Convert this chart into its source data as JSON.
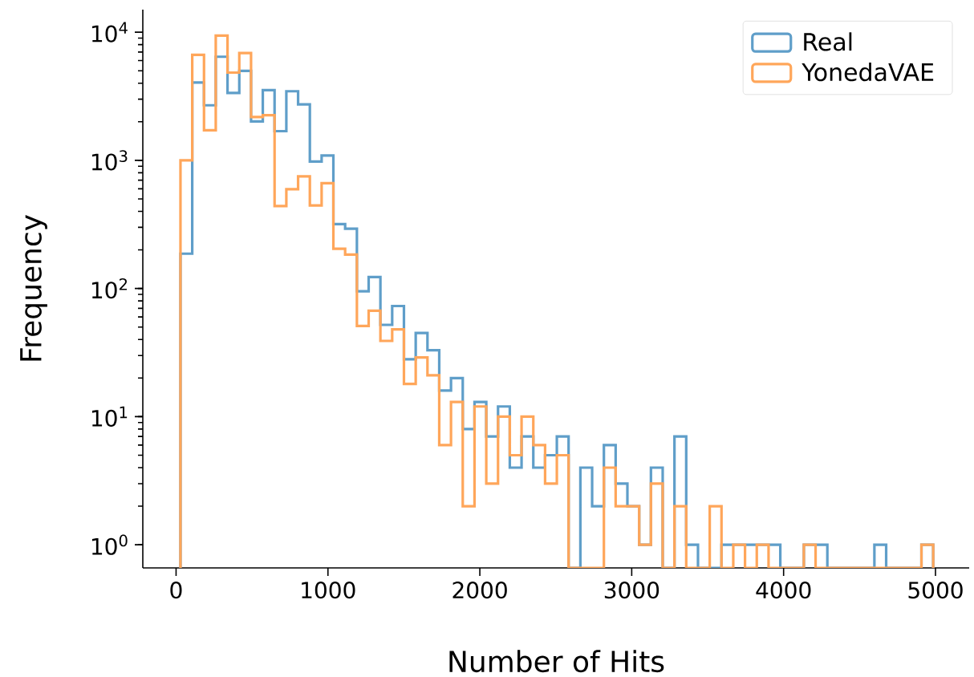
{
  "chart_data": {
    "type": "histogram",
    "xlabel": "Number of Hits",
    "ylabel": "Frequency",
    "log": "y",
    "legend": "top right",
    "bins": [
      29.0,
      106.4,
      183.9,
      261.3,
      338.8,
      416.2,
      493.6,
      571.1,
      648.5,
      726.0,
      803.4,
      880.8,
      958.3,
      1035.7,
      1113.1,
      1190.6,
      1268.0,
      1345.4,
      1422.9,
      1500.3,
      1577.8,
      1655.2,
      1732.6,
      1810.1,
      1887.5,
      1964.9,
      2042.4,
      2119.8,
      2197.3,
      2274.7,
      2352.1,
      2429.6,
      2507.0,
      2584.4,
      2661.9,
      2739.3,
      2816.8,
      2894.2,
      2971.6,
      3049.1,
      3126.5,
      3203.9,
      3281.4,
      3358.8,
      3436.3,
      3513.7,
      3591.1,
      3668.6,
      3746.0,
      3823.4,
      3900.9,
      3978.3,
      4055.8,
      4133.2,
      4210.6,
      4288.1,
      4365.5,
      4442.9,
      4520.4,
      4597.8,
      4675.3,
      4752.7,
      4830.1,
      4907.6,
      4985.0
    ],
    "series": [
      {
        "name": "Real",
        "color": "#5f9ec9",
        "values": [
          187,
          4050,
          2690,
          6430,
          3360,
          4990,
          2010,
          3530,
          1690,
          3460,
          2730,
          978,
          1090,
          318,
          293,
          95,
          123,
          52,
          73,
          28,
          45,
          33,
          16,
          20,
          8,
          13,
          7,
          12,
          4,
          7,
          4,
          5,
          7,
          null,
          4,
          2,
          6,
          3,
          2,
          1,
          4,
          null,
          7,
          1,
          null,
          null,
          1,
          1,
          1,
          1,
          1,
          null,
          null,
          1,
          1,
          null,
          null,
          null,
          null,
          1,
          null,
          null,
          null,
          1
        ]
      },
      {
        "name": "YonedaVAE",
        "color": "#ffa65a",
        "values": [
          1000,
          6650,
          1715,
          9400,
          4840,
          6870,
          2180,
          2250,
          440,
          596,
          750,
          445,
          663,
          204,
          184,
          51,
          67,
          39,
          48,
          18,
          29,
          21,
          6,
          13,
          2,
          12,
          3,
          10,
          5,
          10,
          6,
          3,
          5,
          null,
          null,
          null,
          4,
          2,
          2,
          1,
          3,
          null,
          2,
          null,
          null,
          2,
          null,
          1,
          null,
          1,
          null,
          null,
          null,
          1,
          null,
          null,
          null,
          null,
          null,
          null,
          null,
          null,
          null,
          1
        ]
      }
    ],
    "xlim": [
      -219,
      5222
    ],
    "ylim": [
      0.66,
      15000
    ],
    "xticks": [
      0,
      1000,
      2000,
      3000,
      4000,
      5000
    ],
    "yticks": [
      {
        "value": 1,
        "label": "10$^{0}$"
      },
      {
        "value": 10,
        "label": "10$^{1}$"
      },
      {
        "value": 100,
        "label": "10$^{2}$"
      },
      {
        "value": 1000,
        "label": "10$^{3}$"
      },
      {
        "value": 10000,
        "label": "10$^{4}$"
      }
    ]
  }
}
